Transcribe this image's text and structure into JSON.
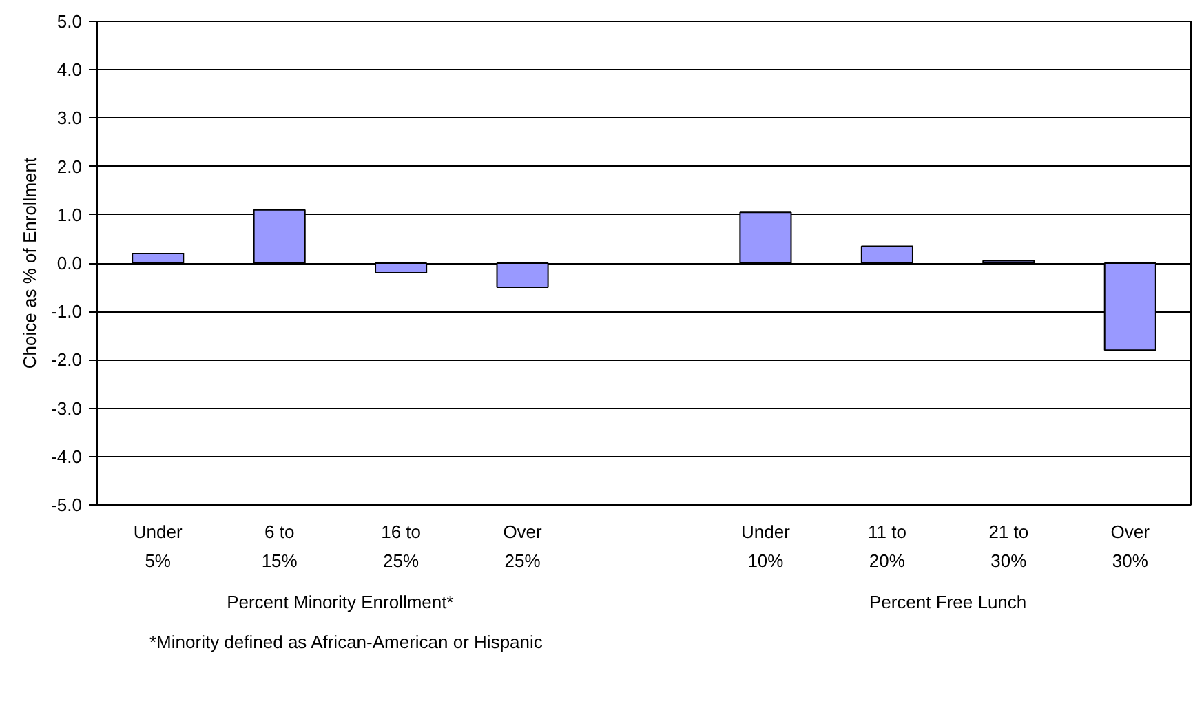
{
  "chart_data": {
    "type": "bar",
    "ylabel": "Choice as % of Enrollment",
    "categories": [
      "Under\n5%",
      "6 to\n15%",
      "16 to\n25%",
      "Over\n25%",
      null,
      "Under\n10%",
      "11 to\n20%",
      "21 to\n30%",
      "Over\n30%"
    ],
    "values": [
      0.2,
      1.1,
      -0.2,
      -0.5,
      null,
      1.05,
      0.35,
      0.05,
      -1.8
    ],
    "color": "#9999ff",
    "ylim": [
      -5,
      5
    ],
    "yticks": [
      {
        "value": -5,
        "label": "-5.0"
      },
      {
        "value": -4,
        "label": "-4.0"
      },
      {
        "value": -3,
        "label": "-3.0"
      },
      {
        "value": -2,
        "label": "-2.0"
      },
      {
        "value": -1,
        "label": "-1.0"
      },
      {
        "value": 0,
        "label": "0.0"
      },
      {
        "value": 1,
        "label": "1.0"
      },
      {
        "value": 2,
        "label": "2.0"
      },
      {
        "value": 3,
        "label": "3.0"
      },
      {
        "value": 4,
        "label": "4.0"
      },
      {
        "value": 5,
        "label": "5.0"
      }
    ],
    "grid": "y",
    "annotations": [
      "Percent Minority Enrollment*",
      "Percent Free Lunch",
      "*Minority defined as African-American or Hispanic"
    ]
  }
}
